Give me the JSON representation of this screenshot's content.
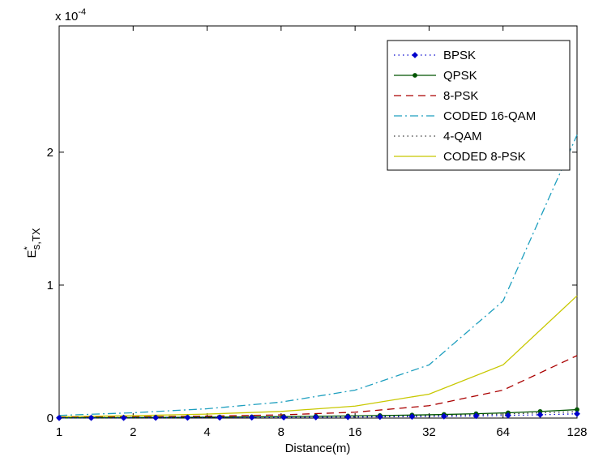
{
  "chart_data": {
    "type": "line",
    "xscale": "log2",
    "x_ticks": [
      1,
      2,
      4,
      8,
      16,
      32,
      64,
      128
    ],
    "x_tick_labels": [
      "1",
      "2",
      "4",
      "8",
      "16",
      "32",
      "64",
      "128"
    ],
    "xlim": [
      1,
      128
    ],
    "ylim": [
      0,
      2.95
    ],
    "y_ticks": [
      0,
      1,
      2
    ],
    "y_tick_labels": [
      "0",
      "1",
      "2"
    ],
    "y_multiplier": "x 10",
    "y_multiplier_exp": "-4",
    "xlabel": "Distance(m)",
    "ylabel_main": "E",
    "ylabel_sup": "*",
    "ylabel_sub": "s,TX",
    "legend_position": "top-right",
    "grid": false,
    "series": [
      {
        "name": "BPSK",
        "color": "#0000cc",
        "style": "dotted",
        "marker": "diamond",
        "x": [
          1,
          1.35,
          1.83,
          2.47,
          3.33,
          4.5,
          6.08,
          8.2,
          11.08,
          14.96,
          20.2,
          27.28,
          36.8,
          49.7,
          67.1,
          90.6,
          128
        ],
        "y": [
          0.0012,
          0.0015,
          0.0019,
          0.0024,
          0.003,
          0.0037,
          0.0045,
          0.0055,
          0.0066,
          0.0079,
          0.0094,
          0.0112,
          0.0135,
          0.0163,
          0.0199,
          0.0248,
          0.0318
        ]
      },
      {
        "name": "QPSK",
        "color": "#005500",
        "style": "solid",
        "marker": "dot",
        "x": [
          1,
          1.35,
          1.83,
          2.47,
          3.33,
          4.5,
          6.08,
          8.2,
          11.08,
          14.96,
          20.2,
          27.28,
          36.8,
          49.7,
          67.1,
          90.6,
          128
        ],
        "y": [
          0.0024,
          0.003,
          0.0038,
          0.0048,
          0.006,
          0.0074,
          0.009,
          0.011,
          0.0133,
          0.0158,
          0.0188,
          0.0224,
          0.027,
          0.0326,
          0.0398,
          0.0496,
          0.0636
        ]
      },
      {
        "name": "8-PSK",
        "color": "#aa0000",
        "style": "dashed",
        "marker": "none",
        "x": [
          1,
          2,
          4,
          8,
          16,
          32,
          64,
          128
        ],
        "y": [
          0.005,
          0.009,
          0.014,
          0.024,
          0.044,
          0.093,
          0.21,
          0.47
        ]
      },
      {
        "name": "CODED 16-QAM",
        "color": "#1e9fbf",
        "style": "dashdot",
        "marker": "none",
        "x": [
          1,
          2,
          4,
          8,
          16,
          32,
          64,
          128
        ],
        "y": [
          0.02,
          0.04,
          0.07,
          0.12,
          0.21,
          0.4,
          0.88,
          2.13
        ]
      },
      {
        "name": "4-QAM",
        "color": "#333333",
        "style": "dotted",
        "marker": "none",
        "x": [
          1,
          2,
          4,
          8,
          16,
          32,
          64,
          128
        ],
        "y": [
          0.003,
          0.004,
          0.006,
          0.009,
          0.013,
          0.019,
          0.03,
          0.048
        ]
      },
      {
        "name": "CODED 8-PSK",
        "color": "#c8c800",
        "style": "solid",
        "marker": "none",
        "x": [
          1,
          2,
          4,
          8,
          16,
          32,
          64,
          128
        ],
        "y": [
          0.01,
          0.018,
          0.03,
          0.05,
          0.09,
          0.18,
          0.4,
          0.92
        ]
      }
    ]
  }
}
